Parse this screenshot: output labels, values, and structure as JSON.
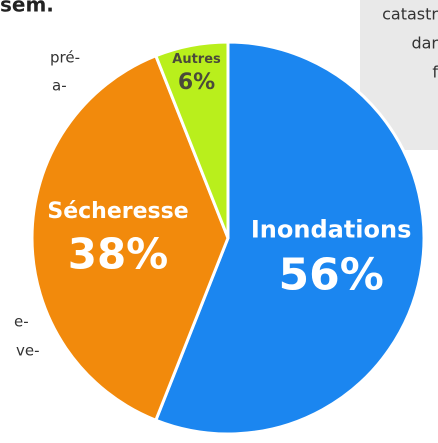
{
  "chart_data": {
    "type": "pie",
    "categories": [
      "Inondations",
      "Sécheresse",
      "Autres"
    ],
    "values": [
      56,
      38,
      6
    ],
    "value_labels": [
      "56%",
      "38%",
      "6%"
    ],
    "colors": [
      "#1b86f0",
      "#f28a0c",
      "#b9ef1c"
    ],
    "label_colors": [
      "#ffffff",
      "#ffffff",
      "#4a4a3a"
    ]
  },
  "text_fragments": {
    "left": [
      "sem.",
      "pré-",
      "a-",
      "e-",
      "ve-"
    ],
    "right_box": [
      "catastr",
      "dar",
      "f"
    ]
  }
}
